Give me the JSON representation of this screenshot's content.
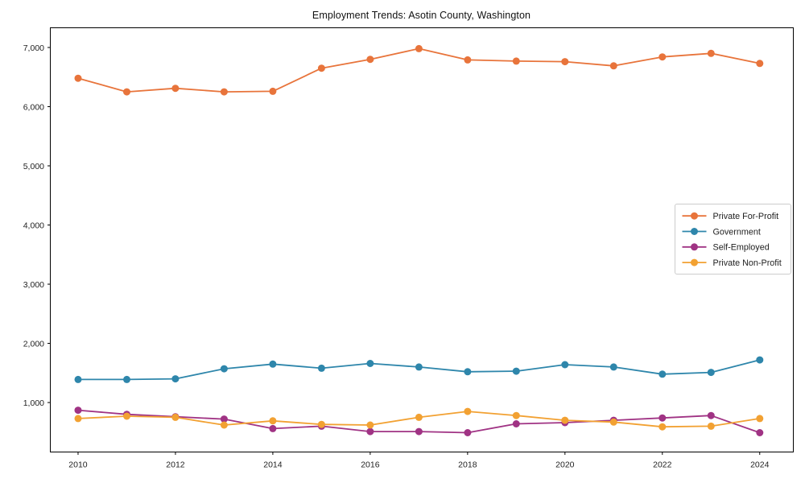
{
  "figure": {
    "title": "Employment Trends: Asotin County, Washington"
  },
  "chart_data": {
    "type": "line",
    "title": "Employment Trends: Asotin County, Washington",
    "xlabel": "",
    "ylabel": "",
    "x": [
      2010,
      2011,
      2012,
      2013,
      2014,
      2015,
      2016,
      2017,
      2018,
      2019,
      2020,
      2021,
      2022,
      2023,
      2024
    ],
    "series": [
      {
        "name": "Private For-Profit",
        "color": "#E8743B",
        "values": [
          6480,
          6250,
          6310,
          6250,
          6260,
          6650,
          6800,
          6980,
          6790,
          6770,
          6760,
          6690,
          6840,
          6900,
          6730
        ]
      },
      {
        "name": "Government",
        "color": "#2E86AB",
        "values": [
          1390,
          1390,
          1400,
          1570,
          1650,
          1580,
          1660,
          1600,
          1520,
          1530,
          1640,
          1600,
          1480,
          1510,
          1720
        ]
      },
      {
        "name": "Self-Employed",
        "color": "#A03384",
        "values": [
          870,
          800,
          760,
          720,
          560,
          600,
          510,
          510,
          490,
          640,
          660,
          700,
          740,
          780,
          490
        ]
      },
      {
        "name": "Private Non-Profit",
        "color": "#F2A132",
        "values": [
          730,
          770,
          750,
          620,
          690,
          630,
          620,
          750,
          850,
          780,
          700,
          670,
          590,
          600,
          730
        ]
      }
    ],
    "xticks": [
      2010,
      2012,
      2014,
      2016,
      2018,
      2020,
      2022,
      2024
    ],
    "yticks": [
      1000,
      2000,
      3000,
      4000,
      5000,
      6000,
      7000
    ],
    "ytick_labels": [
      "1,000",
      "2,000",
      "3,000",
      "4,000",
      "5,000",
      "6,000",
      "7,000"
    ],
    "xlim": [
      2009.43,
      2024.69
    ],
    "ylim": [
      164,
      7333
    ],
    "grid": false,
    "legend_position": "center right",
    "legend_entries": [
      "Private For-Profit",
      "Government",
      "Self-Employed",
      "Private Non-Profit"
    ],
    "marker": "circle",
    "background_color": "#ffffff",
    "axis_color": "#000000",
    "tick_label_color": "#222222"
  }
}
